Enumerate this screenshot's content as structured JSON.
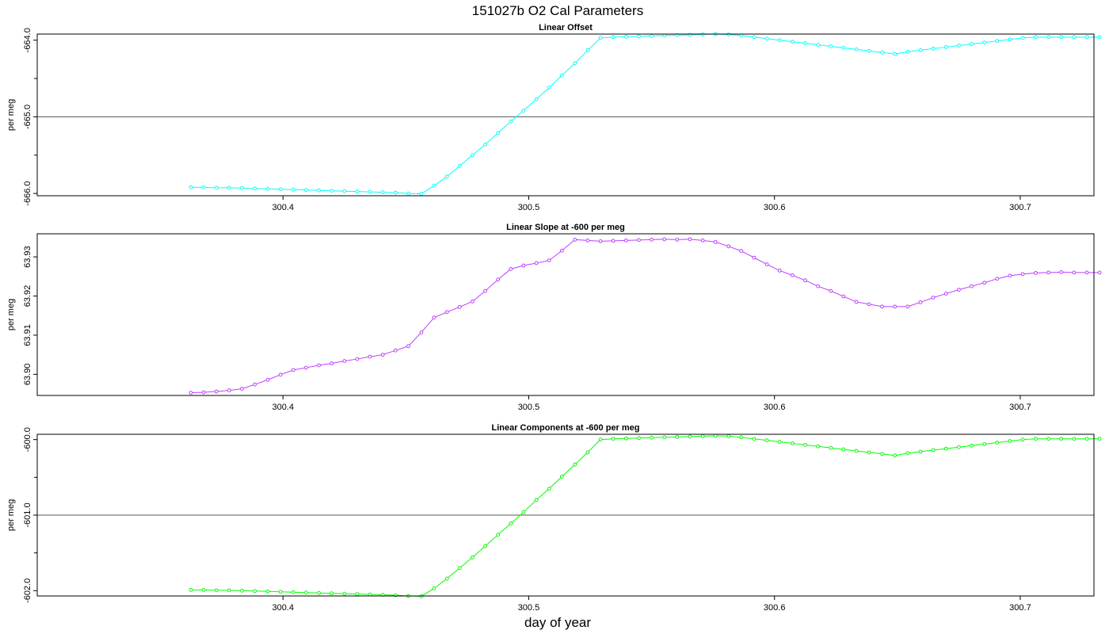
{
  "figure": {
    "title": "151027b   O2 Cal Parameters",
    "xlabel": "day of year"
  },
  "chart_data": [
    {
      "type": "line",
      "title": "Linear Offset",
      "ylabel": "per meg",
      "color": "#00ffff",
      "xlim": [
        300.3,
        300.73
      ],
      "ylim": [
        -666.03,
        -663.92
      ],
      "xticks": [
        "300.4",
        "300.5",
        "300.6",
        "300.7"
      ],
      "yticks": [
        "-664.0",
        "-665.0",
        "-666.0"
      ],
      "yminor": [
        -664.5,
        -665.5
      ],
      "hline": -665.0,
      "x": [
        300.3625,
        300.3677,
        300.3729,
        300.3781,
        300.3833,
        300.3885,
        300.3938,
        300.399,
        300.4042,
        300.4094,
        300.4146,
        300.4198,
        300.425,
        300.4302,
        300.4354,
        300.4406,
        300.4458,
        300.451,
        300.4563,
        300.4615,
        300.4667,
        300.4719,
        300.4771,
        300.4823,
        300.4875,
        300.4927,
        300.4979,
        300.5031,
        300.5083,
        300.5135,
        300.5188,
        300.524,
        300.5292,
        300.5344,
        300.5396,
        300.5448,
        300.55,
        300.5552,
        300.5604,
        300.5656,
        300.5708,
        300.576,
        300.5813,
        300.5865,
        300.5917,
        300.5969,
        300.6021,
        300.6073,
        300.6125,
        300.6177,
        300.6229,
        300.6281,
        300.6333,
        300.6385,
        300.6438,
        300.649,
        300.6542,
        300.6594,
        300.6646,
        300.6698,
        300.675,
        300.6802,
        300.6854,
        300.6906,
        300.6958,
        300.701,
        300.7063,
        300.7115,
        300.7167,
        300.7219,
        300.7271,
        300.7323
      ],
      "y": [
        -665.92,
        -665.92,
        -665.925,
        -665.925,
        -665.93,
        -665.935,
        -665.94,
        -665.945,
        -665.95,
        -665.955,
        -665.96,
        -665.965,
        -665.97,
        -665.975,
        -665.98,
        -665.985,
        -665.99,
        -666.0,
        -666.005,
        -665.9,
        -665.78,
        -665.64,
        -665.5,
        -665.36,
        -665.21,
        -665.06,
        -664.92,
        -664.77,
        -664.62,
        -664.46,
        -664.3,
        -664.13,
        -663.97,
        -663.96,
        -663.955,
        -663.95,
        -663.945,
        -663.94,
        -663.935,
        -663.93,
        -663.925,
        -663.92,
        -663.925,
        -663.94,
        -663.96,
        -663.98,
        -664.0,
        -664.02,
        -664.04,
        -664.06,
        -664.08,
        -664.1,
        -664.12,
        -664.14,
        -664.16,
        -664.18,
        -664.15,
        -664.13,
        -664.11,
        -664.09,
        -664.07,
        -664.05,
        -664.03,
        -664.01,
        -663.99,
        -663.97,
        -663.96,
        -663.96,
        -663.96,
        -663.96,
        -663.96,
        -663.96
      ]
    },
    {
      "type": "line",
      "title": "Linear Slope at -600 per meg",
      "ylabel": "per meg",
      "color": "#bf3eff",
      "xlim": [
        300.3,
        300.73
      ],
      "ylim": [
        63.8946,
        63.9359
      ],
      "xticks": [
        "300.4",
        "300.5",
        "300.6",
        "300.7"
      ],
      "yticks": [
        "63.90",
        "63.91",
        "63.92",
        "63.93"
      ],
      "yminor": [],
      "hline": null,
      "x": [
        300.3625,
        300.3677,
        300.3729,
        300.3781,
        300.3833,
        300.3885,
        300.3938,
        300.399,
        300.4042,
        300.4094,
        300.4146,
        300.4198,
        300.425,
        300.4302,
        300.4354,
        300.4406,
        300.4458,
        300.451,
        300.4563,
        300.4615,
        300.4667,
        300.4719,
        300.4771,
        300.4823,
        300.4875,
        300.4927,
        300.4979,
        300.5031,
        300.5083,
        300.5135,
        300.5188,
        300.524,
        300.5292,
        300.5344,
        300.5396,
        300.5448,
        300.55,
        300.5552,
        300.5604,
        300.5656,
        300.5708,
        300.576,
        300.5813,
        300.5865,
        300.5917,
        300.5969,
        300.6021,
        300.6073,
        300.6125,
        300.6177,
        300.6229,
        300.6281,
        300.6333,
        300.6385,
        300.6438,
        300.649,
        300.6542,
        300.6594,
        300.6646,
        300.6698,
        300.675,
        300.6802,
        300.6854,
        300.6906,
        300.6958,
        300.701,
        300.7063,
        300.7115,
        300.7167,
        300.7219,
        300.7271,
        300.7323
      ],
      "y": [
        63.8953,
        63.8954,
        63.8956,
        63.8959,
        63.8963,
        63.8974,
        63.8986,
        63.8999,
        63.9011,
        63.9017,
        63.9023,
        63.9028,
        63.9034,
        63.9039,
        63.9045,
        63.905,
        63.9061,
        63.9072,
        63.9107,
        63.9145,
        63.9159,
        63.9172,
        63.9186,
        63.9213,
        63.9242,
        63.9269,
        63.9278,
        63.9284,
        63.9291,
        63.9316,
        63.9344,
        63.9342,
        63.934,
        63.9341,
        63.9342,
        63.9343,
        63.9344,
        63.9345,
        63.9344,
        63.9345,
        63.9342,
        63.9338,
        63.9327,
        63.9315,
        63.9298,
        63.9281,
        63.9265,
        63.9253,
        63.924,
        63.9225,
        63.9213,
        63.9199,
        63.9185,
        63.9179,
        63.9173,
        63.9173,
        63.9173,
        63.9184,
        63.9196,
        63.9206,
        63.9216,
        63.9225,
        63.9234,
        63.9244,
        63.9252,
        63.9256,
        63.9259,
        63.926,
        63.9261,
        63.926,
        63.926,
        63.926
      ]
    },
    {
      "type": "line",
      "title": "Linear Components at -600 per meg",
      "ylabel": "per meg",
      "color": "#00ff00",
      "xlim": [
        300.3,
        300.73
      ],
      "ylim": [
        -602.07,
        -599.93
      ],
      "xticks": [
        "300.4",
        "300.5",
        "300.6",
        "300.7"
      ],
      "yticks": [
        "-600.0",
        "-601.0",
        "-602.0"
      ],
      "yminor": [
        -600.5,
        -601.5
      ],
      "hline": -601.0,
      "x": [
        300.3625,
        300.3677,
        300.3729,
        300.3781,
        300.3833,
        300.3885,
        300.3938,
        300.399,
        300.4042,
        300.4094,
        300.4146,
        300.4198,
        300.425,
        300.4302,
        300.4354,
        300.4406,
        300.4458,
        300.451,
        300.4563,
        300.4615,
        300.4667,
        300.4719,
        300.4771,
        300.4823,
        300.4875,
        300.4927,
        300.4979,
        300.5031,
        300.5083,
        300.5135,
        300.5188,
        300.524,
        300.5292,
        300.5344,
        300.5396,
        300.5448,
        300.55,
        300.5552,
        300.5604,
        300.5656,
        300.5708,
        300.576,
        300.5813,
        300.5865,
        300.5917,
        300.5969,
        300.6021,
        300.6073,
        300.6125,
        300.6177,
        300.6229,
        300.6281,
        300.6333,
        300.6385,
        300.6438,
        300.649,
        300.6542,
        300.6594,
        300.6646,
        300.6698,
        300.675,
        300.6802,
        300.6854,
        300.6906,
        300.6958,
        300.701,
        300.7063,
        300.7115,
        300.7167,
        300.7219,
        300.7271,
        300.7323
      ],
      "y": [
        -601.99,
        -601.99,
        -601.995,
        -601.995,
        -602.0,
        -602.005,
        -602.01,
        -602.015,
        -602.02,
        -602.025,
        -602.03,
        -602.035,
        -602.04,
        -602.045,
        -602.05,
        -602.055,
        -602.06,
        -602.07,
        -602.075,
        -601.97,
        -601.84,
        -601.7,
        -601.56,
        -601.41,
        -601.26,
        -601.11,
        -600.96,
        -600.8,
        -600.65,
        -600.49,
        -600.33,
        -600.17,
        -600.0,
        -599.99,
        -599.985,
        -599.98,
        -599.975,
        -599.97,
        -599.965,
        -599.96,
        -599.955,
        -599.95,
        -599.955,
        -599.97,
        -599.99,
        -600.01,
        -600.03,
        -600.05,
        -600.07,
        -600.09,
        -600.11,
        -600.13,
        -600.15,
        -600.17,
        -600.19,
        -600.21,
        -600.18,
        -600.16,
        -600.14,
        -600.12,
        -600.1,
        -600.08,
        -600.06,
        -600.04,
        -600.02,
        -600.0,
        -599.99,
        -599.99,
        -599.99,
        -599.99,
        -599.99,
        -599.99
      ]
    }
  ]
}
